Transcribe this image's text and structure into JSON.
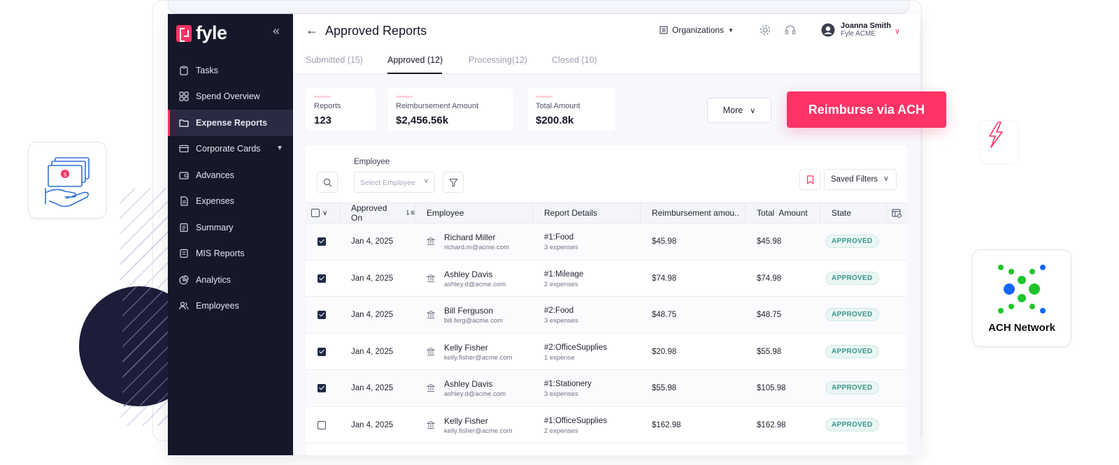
{
  "app": {
    "logo_text": "fyle",
    "title": "Approved Reports"
  },
  "sidebar": {
    "items": [
      {
        "label": "Tasks",
        "icon": "clipboard-icon"
      },
      {
        "label": "Spend Overview",
        "icon": "grid-icon"
      },
      {
        "label": "Expense Reports",
        "icon": "folder-icon",
        "active": true
      },
      {
        "label": "Corporate Cards",
        "icon": "card-icon",
        "has_submenu": true
      },
      {
        "label": "Advances",
        "icon": "wallet-icon"
      },
      {
        "label": "Expenses",
        "icon": "document-icon"
      },
      {
        "label": "Summary",
        "icon": "summary-icon"
      },
      {
        "label": "MIS Reports",
        "icon": "report-icon"
      },
      {
        "label": "Analytics",
        "icon": "pie-icon"
      },
      {
        "label": "Employees",
        "icon": "users-icon"
      }
    ]
  },
  "header": {
    "org_label": "Organizations",
    "user_name": "Joanna Smith",
    "user_org": "Fyle ACME"
  },
  "tabs": [
    {
      "label": "Submitted (15)"
    },
    {
      "label": "Approved (12)",
      "active": true
    },
    {
      "label": "Processing(12)"
    },
    {
      "label": "Closed (10)"
    }
  ],
  "stats": [
    {
      "label": "Reports",
      "value": "123"
    },
    {
      "label": "Reimbursement Amount",
      "value": "$2,456.56k"
    },
    {
      "label": "Total Amount",
      "value": "$200.8k"
    }
  ],
  "actions": {
    "more_label": "More",
    "reimburse_label": "Reimburse via ACH"
  },
  "filters": {
    "employee_label": "Employee",
    "employee_placeholder": "Select Employee",
    "saved_filters_label": "Saved Filters"
  },
  "table": {
    "columns": [
      "Approved On",
      "Employee",
      "Report Details",
      "Reimbursement amou..",
      "Total  Amount",
      "State"
    ],
    "rows": [
      {
        "checked": true,
        "date": "Jan 4, 2025",
        "name": "Richard Miller",
        "email": "richard.m@acme.com",
        "report": "#1:Food",
        "expenses": "3 expenses",
        "reimb": "$45.98",
        "total": "$45.98",
        "state": "APPROVED"
      },
      {
        "checked": true,
        "date": "Jan 4, 2025",
        "name": "Ashley Davis",
        "email": "ashley.d@acme.com",
        "report": "#1:Mileage",
        "expenses": "2 expenses",
        "reimb": "$74.98",
        "total": "$74.98",
        "state": "APPROVED"
      },
      {
        "checked": true,
        "date": "Jan 4, 2025",
        "name": "Bill Ferguson",
        "email": "bill.ferg@acme.com",
        "report": "#2:Food",
        "expenses": "3 expenses",
        "reimb": "$48.75",
        "total": "$48.75",
        "state": "APPROVED"
      },
      {
        "checked": true,
        "date": "Jan 4, 2025",
        "name": "Kelly Fisher",
        "email": "kelly.fisher@acme.com",
        "report": "#2:OfficeSupplies",
        "expenses": "1 expense",
        "reimb": "$20.98",
        "total": "$55.98",
        "state": "APPROVED"
      },
      {
        "checked": true,
        "date": "Jan 4, 2025",
        "name": "Ashley Davis",
        "email": "ashley.d@acme.com",
        "report": "#1:Stationery",
        "expenses": "3 expenses",
        "reimb": "$55.98",
        "total": "$105.98",
        "state": "APPROVED"
      },
      {
        "checked": false,
        "date": "Jan 4, 2025",
        "name": "Kelly Fisher",
        "email": "kelly.fisher@acme.com",
        "report": "#1:OfficeSupplies",
        "expenses": "2 expenses",
        "reimb": "$162.98",
        "total": "$162.98",
        "state": "APPROVED"
      }
    ]
  },
  "side_cards": {
    "ach_label": "ACH Network"
  },
  "colors": {
    "accent": "#ff3366",
    "sidebar_bg": "#161729",
    "approved": "#3a9688"
  }
}
